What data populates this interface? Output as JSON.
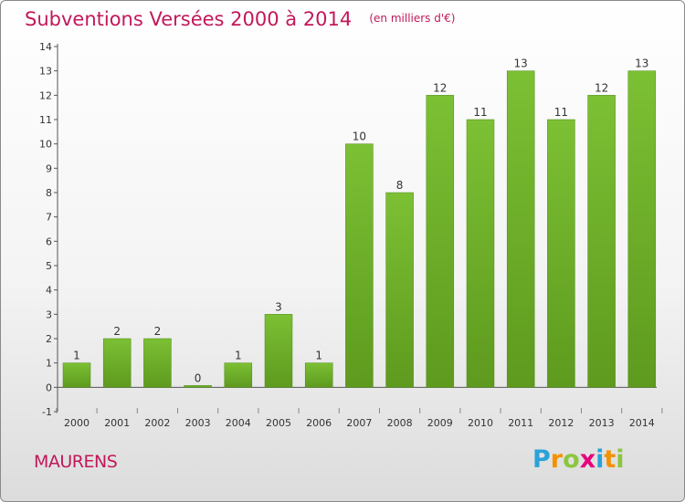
{
  "chart_data": {
    "type": "bar",
    "title": "Subventions Versées 2000 à 2014",
    "subtitle": "(en milliers d'€)",
    "categories": [
      "2000",
      "2001",
      "2002",
      "2003",
      "2004",
      "2005",
      "2006",
      "2007",
      "2008",
      "2009",
      "2010",
      "2011",
      "2012",
      "2013",
      "2014"
    ],
    "values": [
      1,
      2,
      2,
      0,
      1,
      3,
      1,
      10,
      8,
      12,
      11,
      13,
      11,
      12,
      13
    ],
    "value_labels": [
      "1",
      "2",
      "2",
      "0",
      "1",
      "3",
      "1",
      "10",
      "8",
      "12",
      "11",
      "13",
      "11",
      "12",
      "13"
    ],
    "y_ticks": [
      -1,
      0,
      1,
      2,
      3,
      4,
      5,
      6,
      7,
      8,
      9,
      10,
      11,
      12,
      13,
      14
    ],
    "y_tick_labels": [
      "-1",
      "0",
      "1",
      "2",
      "3",
      "4",
      "5",
      "6",
      "7",
      "8",
      "9",
      "10",
      "11",
      "12",
      "13",
      "14"
    ],
    "ylim": [
      -1,
      14
    ],
    "xlabel": "",
    "ylabel": "",
    "grid": false,
    "bar_color": "#7cc034",
    "bar_color_dark": "#5e9a1e"
  },
  "commune": "MAURENS",
  "logo": {
    "letters": [
      "P",
      "r",
      "o",
      "x",
      "i",
      "t",
      "i"
    ],
    "colors": [
      "#29a3d9",
      "#f39200",
      "#8cc63f",
      "#e6007e",
      "#29a3d9",
      "#f39200",
      "#8cc63f"
    ]
  },
  "colors": {
    "accent": "#c2185b"
  }
}
